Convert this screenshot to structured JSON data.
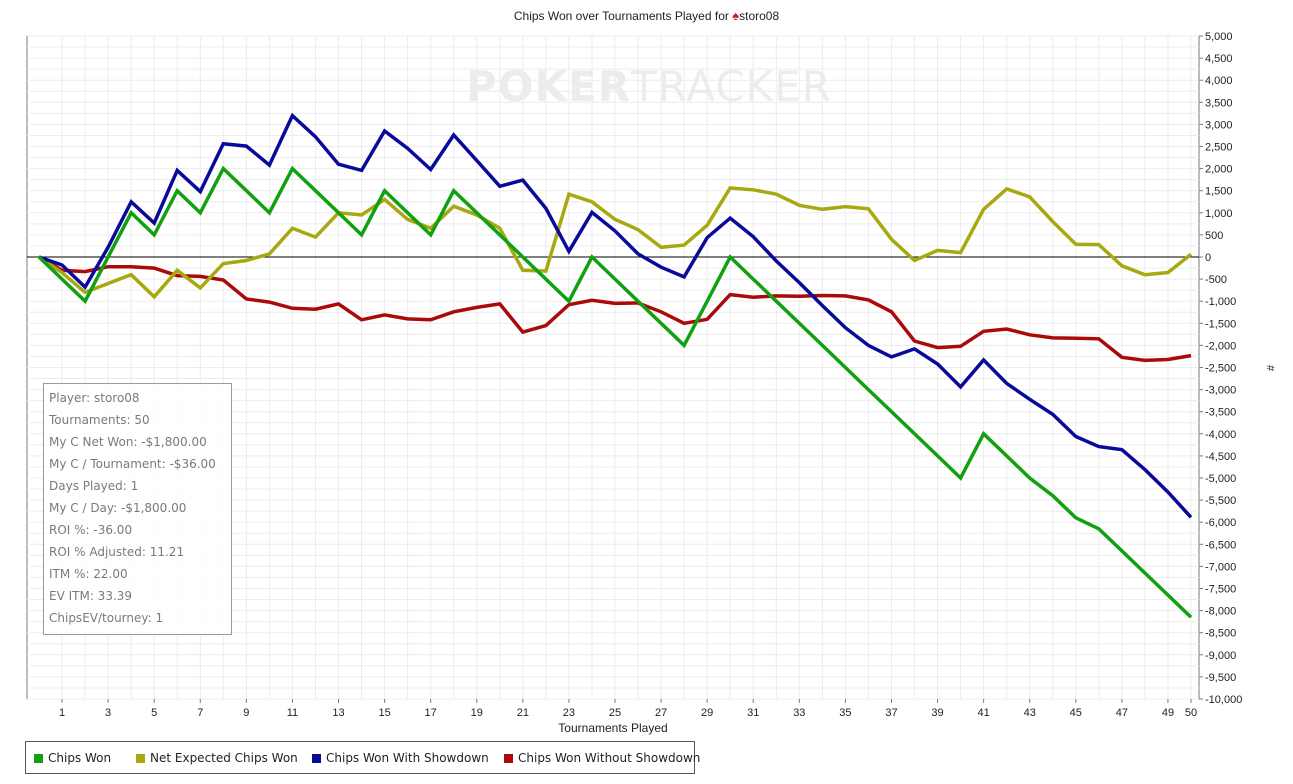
{
  "watermark": {
    "left": "POKER",
    "right": "TRACKER"
  },
  "title": {
    "prefix": "Chips Won over Tournaments Played for",
    "player": "storo08"
  },
  "stats": [
    "Player: storo08",
    "Tournaments: 50",
    "My C Net Won: -$1,800.00",
    "My C / Tournament: -$36.00",
    "Days Played: 1",
    "My C / Day: -$1,800.00",
    "ROI %: -36.00",
    "ROI % Adjusted: 11.21",
    "ITM %: 22.00",
    "EV ITM: 33.39",
    "ChipsEV/tourney: 1"
  ],
  "chart_data": {
    "type": "line",
    "xlabel": "Tournaments Played",
    "ylabel": "#",
    "xlim": [
      0,
      50
    ],
    "ylim": [
      -10000,
      5000
    ],
    "x_ticks": [
      1,
      3,
      5,
      7,
      9,
      11,
      13,
      15,
      17,
      19,
      21,
      23,
      25,
      27,
      29,
      31,
      33,
      35,
      37,
      39,
      41,
      43,
      45,
      47,
      49,
      50
    ],
    "y_ticks": [
      5000,
      4500,
      4000,
      3500,
      3000,
      2500,
      2000,
      1500,
      1000,
      500,
      0,
      -500,
      -1000,
      -1500,
      -2000,
      -2500,
      -3000,
      -3500,
      -4000,
      -4500,
      -5000,
      -5500,
      -6000,
      -6500,
      -7000,
      -7500,
      -8000,
      -8500,
      -9000,
      -9500,
      -10000
    ],
    "y_tick_labels": [
      "5,000",
      "4,500",
      "4,000",
      "3,500",
      "3,000",
      "2,500",
      "2,000",
      "1,500",
      "1,000",
      "500",
      "0",
      "-500",
      "-1,000",
      "-1,500",
      "-2,000",
      "-2,500",
      "-3,000",
      "-3,500",
      "-4,000",
      "-4,500",
      "-5,000",
      "-5,500",
      "-6,000",
      "-6,500",
      "-7,000",
      "-7,500",
      "-8,000",
      "-8,500",
      "-9,000",
      "-9,500",
      "-10,000"
    ],
    "grid": true,
    "legend_position": "bottom-left",
    "series": [
      {
        "name": "Chips Won",
        "color": "#10a010",
        "x": [
          0,
          1,
          2,
          3,
          4,
          5,
          6,
          7,
          8,
          9,
          10,
          11,
          12,
          13,
          14,
          15,
          16,
          17,
          18,
          19,
          20,
          21,
          22,
          23,
          24,
          25,
          26,
          27,
          28,
          29,
          30,
          31,
          32,
          33,
          34,
          35,
          36,
          37,
          38,
          39,
          40,
          41,
          42,
          43,
          44,
          45,
          46,
          47,
          48,
          49,
          50
        ],
        "values": [
          0,
          -500,
          -1000,
          0,
          1000,
          500,
          1500,
          1000,
          2000,
          1500,
          1000,
          2000,
          1500,
          1000,
          500,
          1500,
          1000,
          500,
          1500,
          1000,
          500,
          0,
          -500,
          -1000,
          0,
          -500,
          -1000,
          -1500,
          -2000,
          -1000,
          0,
          -500,
          -1000,
          -1500,
          -2000,
          -2500,
          -3000,
          -3500,
          -4000,
          -4500,
          -5000,
          -4000,
          -4500,
          -5000,
          -5400,
          -5900,
          -6150,
          -6650,
          -7150,
          -7650,
          -8150
        ]
      },
      {
        "name": "Net Expected Chips Won",
        "color": "#a8a810",
        "x": [
          0,
          1,
          2,
          3,
          4,
          5,
          6,
          7,
          8,
          9,
          10,
          11,
          12,
          13,
          14,
          15,
          16,
          17,
          18,
          19,
          20,
          21,
          22,
          23,
          24,
          25,
          26,
          27,
          28,
          29,
          30,
          31,
          32,
          33,
          34,
          35,
          36,
          37,
          38,
          39,
          40,
          41,
          42,
          43,
          44,
          45,
          46,
          47,
          48,
          49,
          50
        ],
        "values": [
          0,
          -350,
          -800,
          -600,
          -400,
          -900,
          -300,
          -700,
          -150,
          -80,
          70,
          650,
          450,
          1000,
          950,
          1300,
          850,
          650,
          1150,
          950,
          650,
          -300,
          -320,
          1420,
          1250,
          850,
          620,
          220,
          270,
          720,
          1560,
          1520,
          1420,
          1170,
          1080,
          1140,
          1090,
          400,
          -80,
          150,
          100,
          1080,
          1540,
          1360,
          800,
          290,
          280,
          -200,
          -400,
          -350,
          60
        ]
      },
      {
        "name": "Chips Won With Showdown",
        "color": "#0a0a9a",
        "x": [
          0,
          1,
          2,
          3,
          4,
          5,
          6,
          7,
          8,
          9,
          10,
          11,
          12,
          13,
          14,
          15,
          16,
          17,
          18,
          19,
          20,
          21,
          22,
          23,
          24,
          25,
          26,
          27,
          28,
          29,
          30,
          31,
          32,
          33,
          34,
          35,
          36,
          37,
          38,
          39,
          40,
          41,
          42,
          43,
          44,
          45,
          46,
          47,
          48,
          49,
          50
        ],
        "values": [
          0,
          -180,
          -680,
          220,
          1250,
          770,
          1960,
          1480,
          2560,
          2510,
          2080,
          3200,
          2720,
          2100,
          1960,
          2850,
          2460,
          1980,
          2760,
          2180,
          1600,
          1740,
          1100,
          130,
          1010,
          590,
          70,
          -230,
          -450,
          440,
          880,
          460,
          -90,
          -580,
          -1100,
          -1600,
          -2000,
          -2260,
          -2080,
          -2420,
          -2940,
          -2330,
          -2860,
          -3220,
          -3560,
          -4060,
          -4290,
          -4360,
          -4810,
          -5320,
          -5890
        ]
      },
      {
        "name": "Chips Won Without Showdown",
        "color": "#aa0a0a",
        "x": [
          0,
          1,
          2,
          3,
          4,
          5,
          6,
          7,
          8,
          9,
          10,
          11,
          12,
          13,
          14,
          15,
          16,
          17,
          18,
          19,
          20,
          21,
          22,
          23,
          24,
          25,
          26,
          27,
          28,
          29,
          30,
          31,
          32,
          33,
          34,
          35,
          36,
          37,
          38,
          39,
          40,
          41,
          42,
          43,
          44,
          45,
          46,
          47,
          48,
          49,
          50
        ],
        "values": [
          0,
          -300,
          -330,
          -220,
          -220,
          -250,
          -420,
          -440,
          -520,
          -950,
          -1020,
          -1160,
          -1180,
          -1060,
          -1420,
          -1310,
          -1400,
          -1420,
          -1240,
          -1140,
          -1060,
          -1700,
          -1550,
          -1080,
          -980,
          -1050,
          -1040,
          -1240,
          -1500,
          -1410,
          -850,
          -910,
          -880,
          -890,
          -870,
          -880,
          -970,
          -1240,
          -1900,
          -2050,
          -2020,
          -1680,
          -1630,
          -1760,
          -1830,
          -1840,
          -1850,
          -2270,
          -2340,
          -2320,
          -2230
        ]
      }
    ]
  }
}
